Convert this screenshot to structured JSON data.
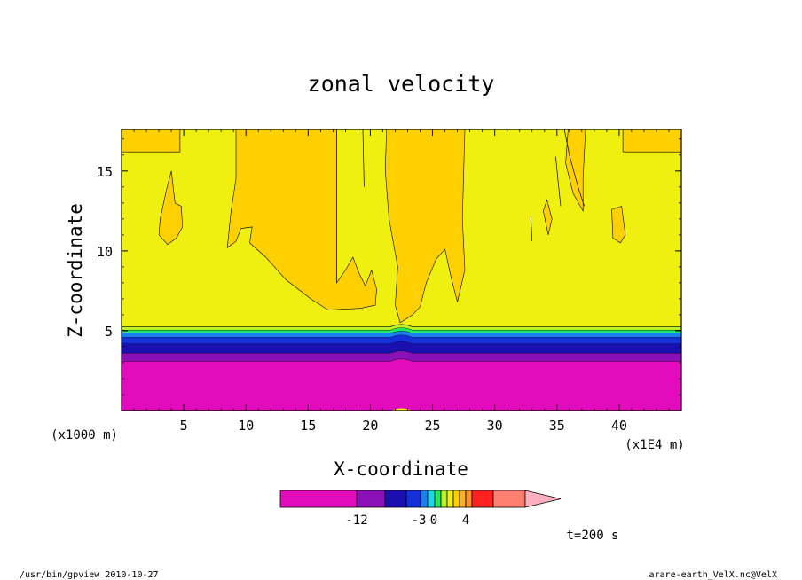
{
  "chart_data": {
    "type": "heatmap",
    "title": "zonal velocity",
    "xlabel": "X-coordinate",
    "ylabel": "Z-coordinate",
    "x_units": "(x1E4 m)",
    "y_units": "(x1000 m)",
    "xlim": [
      0,
      45
    ],
    "ylim": [
      0,
      17.6
    ],
    "x_ticks": [
      "5",
      "10",
      "15",
      "20",
      "25",
      "30",
      "35",
      "40"
    ],
    "y_ticks": [
      "5",
      "10",
      "15"
    ],
    "colorbar": {
      "colors": [
        "#e20cbc",
        "#8a10b8",
        "#1a10b0",
        "#1430d8",
        "#1880f0",
        "#18d8e8",
        "#20e860",
        "#bcf020",
        "#f0f010",
        "#ffd000",
        "#ffb020",
        "#ff9030",
        "#ff2020",
        "#ff8070",
        "#ffb0c0"
      ],
      "tick_labels": [
        "-12",
        "-3",
        "0",
        "4"
      ]
    },
    "bands": [
      {
        "z": [
          0.0,
          3.1
        ],
        "color": "#e20cbc"
      },
      {
        "z": [
          3.1,
          3.6
        ],
        "color": "#8a10b8"
      },
      {
        "z": [
          3.6,
          4.2
        ],
        "color": "#1a10b0"
      },
      {
        "z": [
          4.2,
          4.6
        ],
        "color": "#1430d8"
      },
      {
        "z": [
          4.6,
          4.85
        ],
        "color": "#1880f0"
      },
      {
        "z": [
          4.85,
          5.05
        ],
        "color": "#20e860"
      },
      {
        "z": [
          5.05,
          5.25
        ],
        "color": "#bcf020"
      }
    ],
    "background_color": "#f0f010",
    "positive_region_color": "#ffd000",
    "time_label": "t=200 s"
  },
  "footer": {
    "left": "/usr/bin/gpview  2010-10-27",
    "right": "arare-earth_VelX.nc@VelX"
  }
}
